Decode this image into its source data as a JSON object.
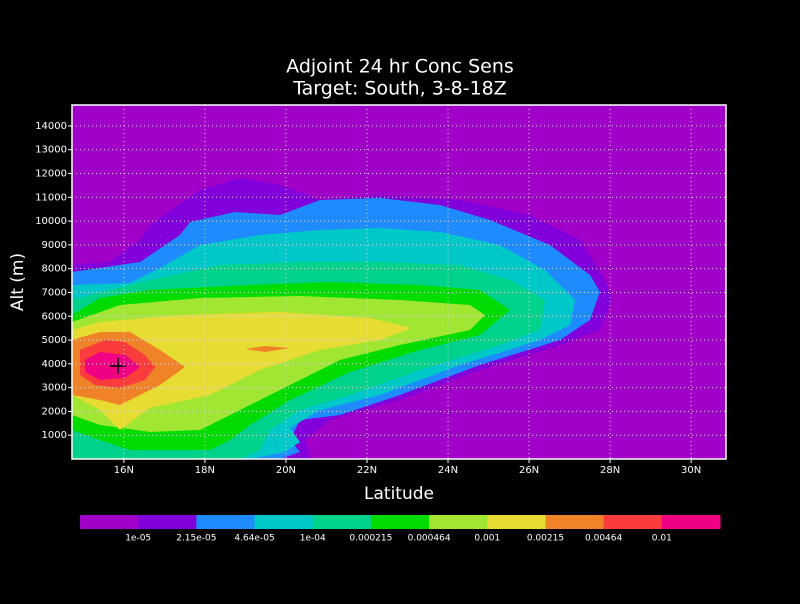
{
  "chart_data": {
    "type": "contour",
    "title": "Adjoint 24 hr Conc Sens",
    "subtitle": "Target: South, 3-8-18Z",
    "xlabel": "Latitude",
    "ylabel": "Alt (m)",
    "xlim": [
      14.72,
      30.86
    ],
    "ylim": [
      0,
      14880
    ],
    "xticks": [
      {
        "value": 16,
        "label": "16N"
      },
      {
        "value": 18,
        "label": "18N"
      },
      {
        "value": 20,
        "label": "20N"
      },
      {
        "value": 22,
        "label": "22N"
      },
      {
        "value": 24,
        "label": "24N"
      },
      {
        "value": 26,
        "label": "26N"
      },
      {
        "value": 28,
        "label": "28N"
      },
      {
        "value": 30,
        "label": "30N"
      }
    ],
    "yticks": [
      1000,
      2000,
      3000,
      4000,
      5000,
      6000,
      7000,
      8000,
      9000,
      10000,
      11000,
      12000,
      13000,
      14000
    ],
    "grid": true,
    "levels": [
      {
        "value": 1e-05,
        "label": "1e-05"
      },
      {
        "value": 2.15e-05,
        "label": "2.15e-05"
      },
      {
        "value": 4.64e-05,
        "label": "4.64e-05"
      },
      {
        "value": 0.0001,
        "label": "1e-04"
      },
      0.000215,
      0.000464,
      0.001,
      0.00215,
      0.00464,
      0.01
    ],
    "colors": [
      "#a000c8",
      "#8200dc",
      "#1e8cff",
      "#00c8c8",
      "#00d28c",
      "#00dc00",
      "#a0e632",
      "#e6dc32",
      "#f08228",
      "#fa3c3c",
      "#f00082"
    ]
  }
}
